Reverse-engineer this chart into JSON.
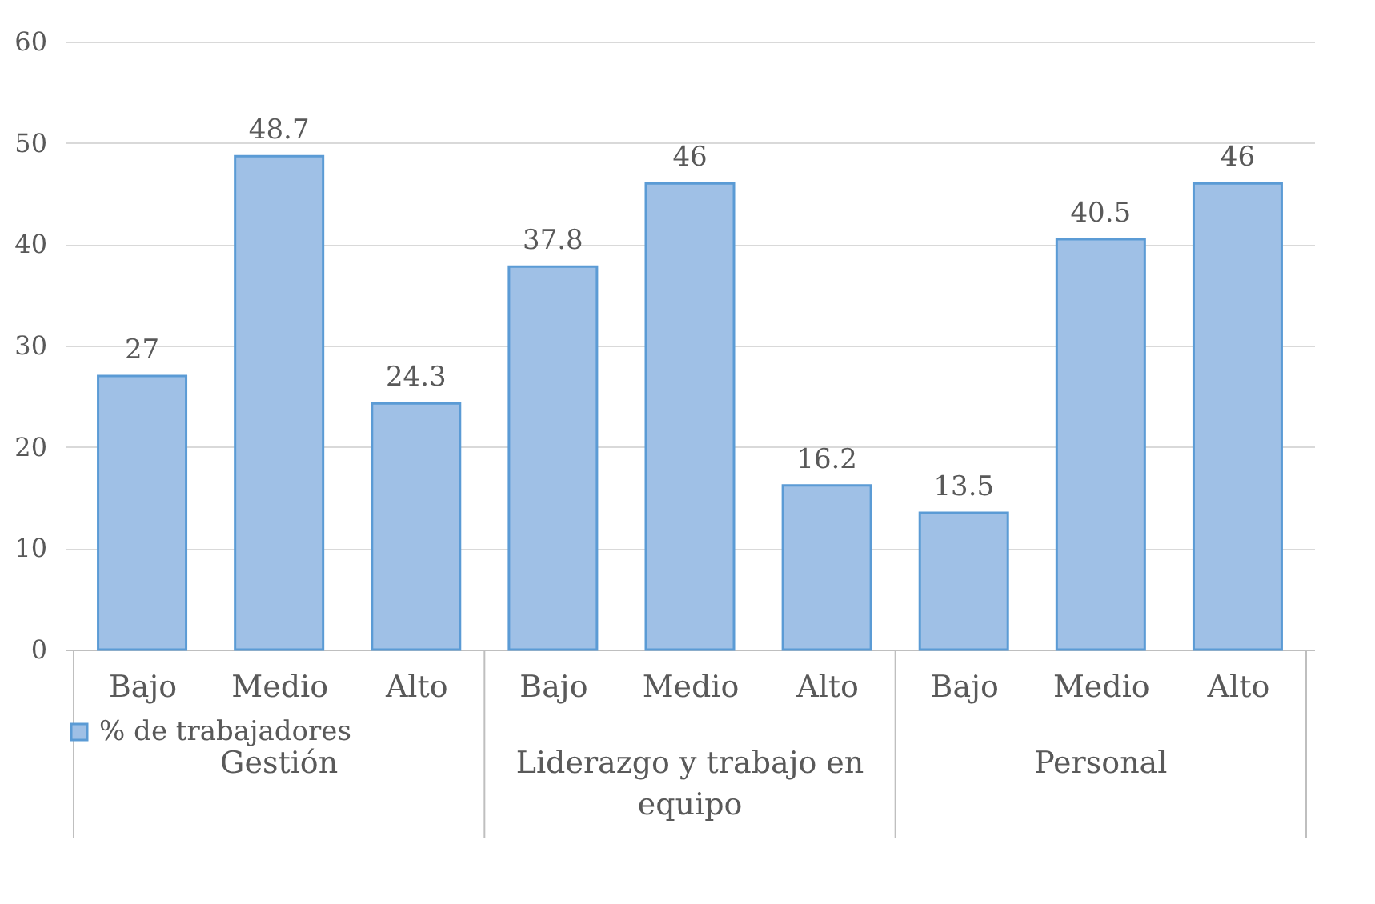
{
  "chart_data": {
    "type": "bar",
    "categories": [
      "Bajo",
      "Medio",
      "Alto",
      "Bajo",
      "Medio",
      "Alto",
      "Bajo",
      "Medio",
      "Alto"
    ],
    "series": [
      {
        "name": "% de trabajadores",
        "color": "#9fc0e6",
        "values": [
          27,
          48.7,
          24.3,
          37.8,
          46,
          16.2,
          13.5,
          40.5,
          46
        ]
      }
    ],
    "annotations": [
      "Gestión",
      "Liderazgo y trabajo en equipo",
      "Personal"
    ],
    "ylim": [
      0,
      60
    ],
    "yticks": [
      0,
      10,
      20,
      30,
      40,
      50,
      60
    ],
    "grid": "y",
    "legend": "bottom",
    "data_labels": true
  }
}
